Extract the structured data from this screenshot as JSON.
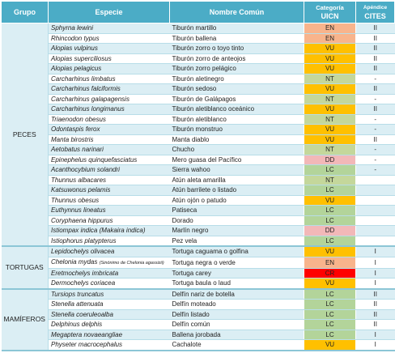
{
  "table": {
    "columns": {
      "group": "Grupo",
      "species": "Especie",
      "common": "Nombre Común",
      "uicn": [
        "Categoría",
        "UICN"
      ],
      "cites": [
        "Apéndice",
        "CITES"
      ]
    },
    "category_colors": {
      "EN": "#f8b48c",
      "VU": "#ffc000",
      "NT": "#c4d79b",
      "LC": "#b3d49a",
      "DD": "#f2b8b8",
      "CR": "#ff0000"
    },
    "groups": [
      {
        "name": "PECES",
        "rows": [
          {
            "species": "Sphyrna lewini",
            "common": "Tiburón martillo",
            "uicn": "EN",
            "cites": "II"
          },
          {
            "species": "Rhincodon typus",
            "common": "Tiburón ballena",
            "uicn": "EN",
            "cites": "II"
          },
          {
            "species": "Alopias vulpinus",
            "common": "Tiburón zorro o toyo tinto",
            "uicn": "VU",
            "cites": "II"
          },
          {
            "species": "Alopias superciliosus",
            "common": "Tiburón zorro de anteojos",
            "uicn": "VU",
            "cites": "II"
          },
          {
            "species": "Alopias pelagicus",
            "common": "Tiburón zorro pelágico",
            "uicn": "VU",
            "cites": "II"
          },
          {
            "species": "Carcharhinus limbatus",
            "common": "Tiburón aletinegro",
            "uicn": "NT",
            "cites": "-"
          },
          {
            "species": "Carcharhinus falciformis",
            "common": "Tiburón sedoso",
            "uicn": "VU",
            "cites": "II"
          },
          {
            "species": "Carcharhinus galapagensis",
            "common": "Tiburón de Galápagos",
            "uicn": "NT",
            "cites": "-"
          },
          {
            "species": "Carcharhinus longimanus",
            "common": "Tiburón aletiblanco oceánico",
            "uicn": "VU",
            "cites": "II"
          },
          {
            "species": "Triaenodon obesus",
            "common": "Tiburón aletiblanco",
            "uicn": "NT",
            "cites": "-"
          },
          {
            "species": "Odontaspis ferox",
            "common": "Tiburón monstruo",
            "uicn": "VU",
            "cites": "-"
          },
          {
            "species": "Manta birostris",
            "common": "Manta diablo",
            "uicn": "VU",
            "cites": "II"
          },
          {
            "species": "Aetobatus narinari",
            "common": "Chucho",
            "uicn": "NT",
            "cites": "-"
          },
          {
            "species": "Epinephelus quinquefasciatus",
            "common": "Mero guasa del Pacífico",
            "uicn": "DD",
            "cites": "-"
          },
          {
            "species": "Acanthocybium solandri",
            "common": "Sierra wahoo",
            "uicn": "LC",
            "cites": "-"
          },
          {
            "species": "Thunnus albacares",
            "common": "Atún aleta amarilla",
            "uicn": "NT"
          },
          {
            "species": "Katsuwonus pelamis",
            "common": "Atún barrilete o listado",
            "uicn": "LC"
          },
          {
            "species": "Thunnus obesus",
            "common": "Atún ojón o patudo",
            "uicn": "VU"
          },
          {
            "species": "Euthynnus lineatus",
            "common": "Patiseca",
            "uicn": "LC"
          },
          {
            "species": "Coryphaena hippurus",
            "common": "Dorado",
            "uicn": "LC"
          },
          {
            "species": "Istiompax indica (Makaira indica)",
            "common": "Marlín negro",
            "uicn": "DD"
          },
          {
            "species": "Istiophorus platypterus",
            "common": "Pez vela",
            "uicn": "LC"
          }
        ]
      },
      {
        "name": "TORTUGAS",
        "rows": [
          {
            "species": "Lepidochelys olivacea",
            "common": "Tortuga caguama o golfina",
            "uicn": "VU",
            "cites": "I"
          },
          {
            "species": "Chelonia mydas",
            "note": "(Sinónimo de Chelonia agassizii)",
            "common": "Tortuga negra o verde",
            "uicn": "EN",
            "cites": "I"
          },
          {
            "species": "Eretmochelys imbricata",
            "common": "Tortuga carey",
            "uicn": "CR",
            "cites": "I"
          },
          {
            "species": "Dermochelys coriacea",
            "common": "Tortuga baula o laud",
            "uicn": "VU",
            "cites": "I"
          }
        ]
      },
      {
        "name": "MAMÍFEROS",
        "rows": [
          {
            "species": "Tursiops truncatus",
            "common": "Delfín nariz de botella",
            "uicn": "LC",
            "cites": "II"
          },
          {
            "species": "Stenella attenuata",
            "common": "Delfín moteado",
            "uicn": "LC",
            "cites": "II"
          },
          {
            "species": "Stenella coeruleoalba",
            "common": "Delfín listado",
            "uicn": "LC",
            "cites": "II"
          },
          {
            "species": "Delphinus delphis",
            "common": "Delfín común",
            "uicn": "LC",
            "cites": "II"
          },
          {
            "species": "Megaptera novaeangliae",
            "common": "Ballena jorobada",
            "uicn": "LC",
            "cites": "I"
          },
          {
            "species": "Physeter macrocephalus",
            "common": "Cachalote",
            "uicn": "VU",
            "cites": "I"
          }
        ]
      }
    ]
  }
}
